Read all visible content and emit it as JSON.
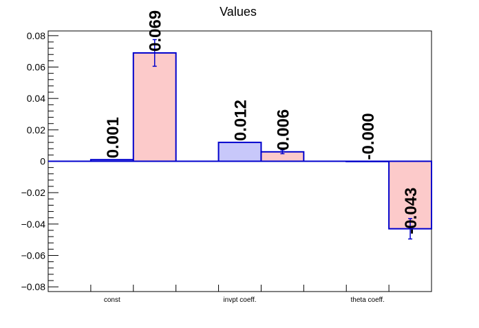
{
  "chart_data": {
    "type": "bar",
    "title": "Values",
    "xlabel": "",
    "ylabel": "",
    "categories": [
      "const",
      "invpt coeff.",
      "theta coeff."
    ],
    "series": [
      {
        "fill": "#c8c8fa",
        "stroke": "#0000cc",
        "values": [
          0.001,
          0.012,
          -0.0001
        ],
        "errors": [
          0,
          0,
          0
        ],
        "labels": [
          "0.001",
          "0.012",
          "-0.000"
        ]
      },
      {
        "fill": "#fccaca",
        "stroke": "#0000cc",
        "values": [
          0.069,
          0.006,
          -0.043
        ],
        "errors": [
          0.0085,
          0.0012,
          0.0065
        ],
        "labels": [
          "0.069",
          "0.006",
          "-0.043"
        ]
      }
    ],
    "ylim": [
      -0.083,
      0.083
    ],
    "yticks": [
      -0.08,
      -0.06,
      -0.04,
      -0.02,
      0,
      0.02,
      0.04,
      0.06,
      0.08
    ],
    "ytick_labels": [
      "−0.08",
      "−0.06",
      "−0.04",
      "−0.02",
      "0",
      "0.02",
      "0.04",
      "0.06",
      "0.08"
    ],
    "grid": false,
    "legend": "none",
    "zero_line_color": "#0000cc"
  }
}
